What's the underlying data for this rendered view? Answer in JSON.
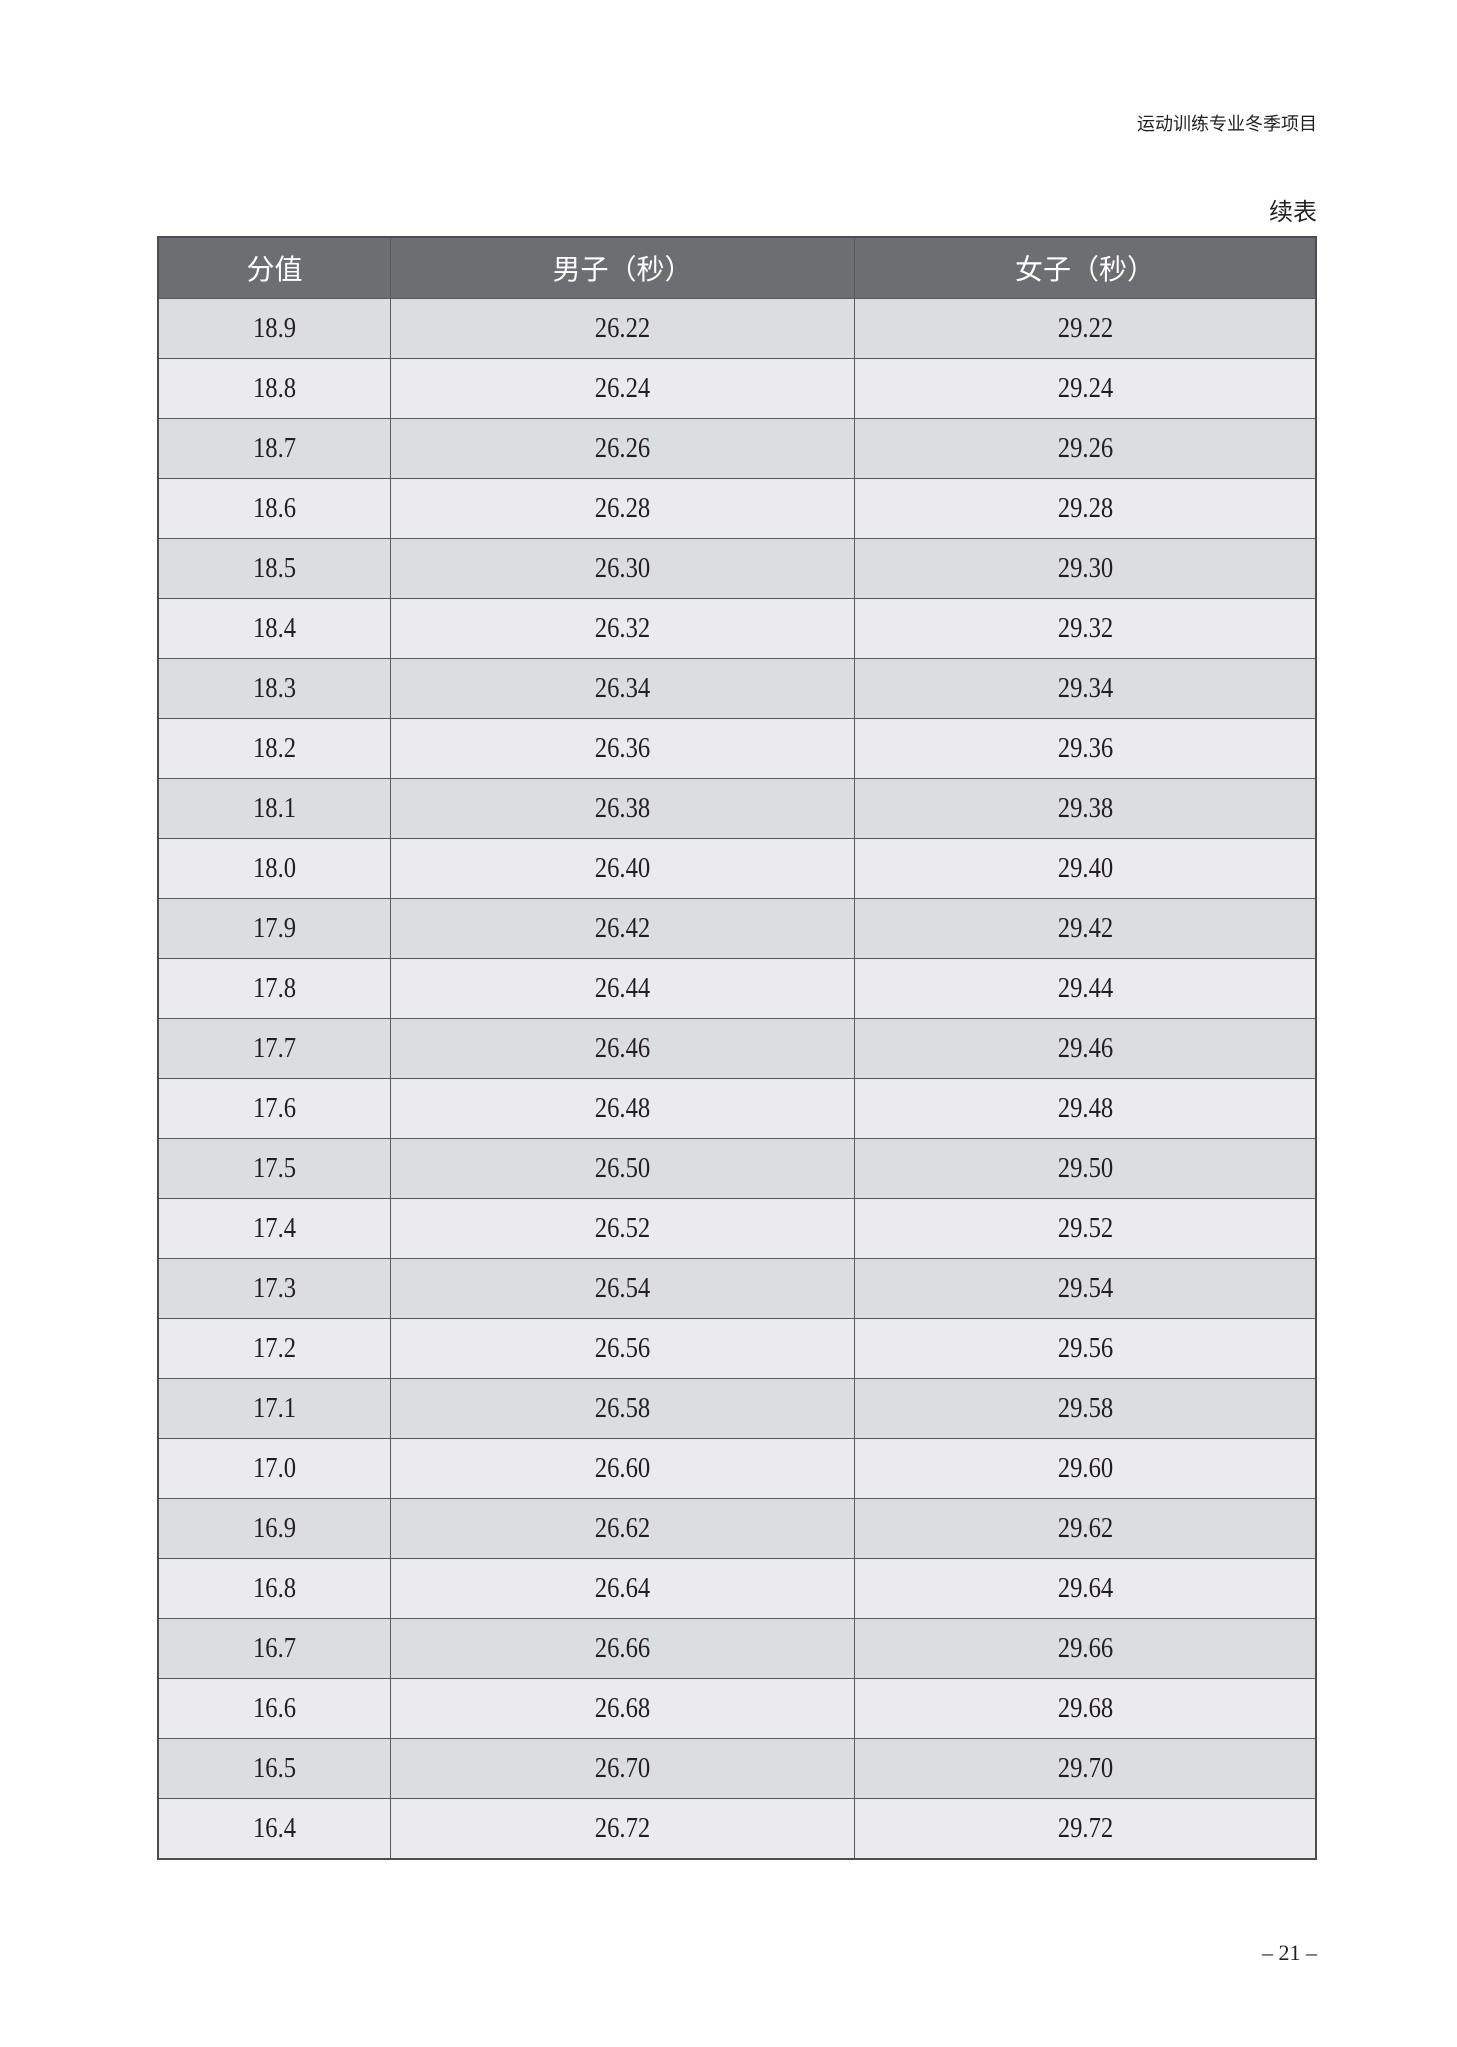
{
  "header": {
    "running_title": "运动训练专业冬季项目",
    "continued_label": "续表"
  },
  "table": {
    "columns": [
      "分值",
      "男子（秒）",
      "女子（秒）"
    ],
    "rows": [
      [
        "18.9",
        "26.22",
        "29.22"
      ],
      [
        "18.8",
        "26.24",
        "29.24"
      ],
      [
        "18.7",
        "26.26",
        "29.26"
      ],
      [
        "18.6",
        "26.28",
        "29.28"
      ],
      [
        "18.5",
        "26.30",
        "29.30"
      ],
      [
        "18.4",
        "26.32",
        "29.32"
      ],
      [
        "18.3",
        "26.34",
        "29.34"
      ],
      [
        "18.2",
        "26.36",
        "29.36"
      ],
      [
        "18.1",
        "26.38",
        "29.38"
      ],
      [
        "18.0",
        "26.40",
        "29.40"
      ],
      [
        "17.9",
        "26.42",
        "29.42"
      ],
      [
        "17.8",
        "26.44",
        "29.44"
      ],
      [
        "17.7",
        "26.46",
        "29.46"
      ],
      [
        "17.6",
        "26.48",
        "29.48"
      ],
      [
        "17.5",
        "26.50",
        "29.50"
      ],
      [
        "17.4",
        "26.52",
        "29.52"
      ],
      [
        "17.3",
        "26.54",
        "29.54"
      ],
      [
        "17.2",
        "26.56",
        "29.56"
      ],
      [
        "17.1",
        "26.58",
        "29.58"
      ],
      [
        "17.0",
        "26.60",
        "29.60"
      ],
      [
        "16.9",
        "26.62",
        "29.62"
      ],
      [
        "16.8",
        "26.64",
        "29.64"
      ],
      [
        "16.7",
        "26.66",
        "29.66"
      ],
      [
        "16.6",
        "26.68",
        "29.68"
      ],
      [
        "16.5",
        "26.70",
        "29.70"
      ],
      [
        "16.4",
        "26.72",
        "29.72"
      ]
    ]
  },
  "footer": {
    "page_number": "– 21 –"
  },
  "colors": {
    "header_bg": "#6d6e71",
    "row_dark": "#dcdddf",
    "row_light": "#ebebed"
  }
}
